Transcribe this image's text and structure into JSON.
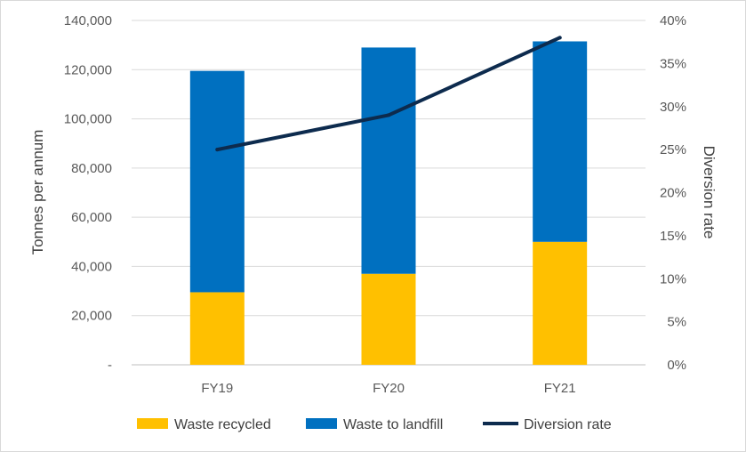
{
  "chart_data": {
    "type": "bar",
    "stacked": true,
    "categories": [
      "FY19",
      "FY20",
      "FY21"
    ],
    "series": [
      {
        "name": "Waste recycled",
        "kind": "bar",
        "axis": "left",
        "color": "#FFC000",
        "values": [
          29500,
          37000,
          50000
        ]
      },
      {
        "name": "Waste to landfill",
        "kind": "bar",
        "axis": "left",
        "color": "#0070C0",
        "values": [
          90000,
          92000,
          81500
        ]
      },
      {
        "name": "Diversion rate",
        "kind": "line",
        "axis": "right",
        "color": "#0D2B4E",
        "values": [
          0.25,
          0.29,
          0.38
        ]
      }
    ],
    "ylabel": "Tonnes per annum",
    "y2label": "Diversion rate",
    "ylim": [
      0,
      140000
    ],
    "y2lim": [
      0,
      0.4
    ],
    "yticks": [
      {
        "value": 0,
        "label": "-"
      },
      {
        "value": 20000,
        "label": "20,000"
      },
      {
        "value": 40000,
        "label": "40,000"
      },
      {
        "value": 60000,
        "label": "60,000"
      },
      {
        "value": 80000,
        "label": "80,000"
      },
      {
        "value": 100000,
        "label": "100,000"
      },
      {
        "value": 120000,
        "label": "120,000"
      },
      {
        "value": 140000,
        "label": "140,000"
      }
    ],
    "y2ticks": [
      {
        "value": 0,
        "label": "0%"
      },
      {
        "value": 0.05,
        "label": "5%"
      },
      {
        "value": 0.1,
        "label": "10%"
      },
      {
        "value": 0.15,
        "label": "15%"
      },
      {
        "value": 0.2,
        "label": "20%"
      },
      {
        "value": 0.25,
        "label": "25%"
      },
      {
        "value": 0.3,
        "label": "30%"
      },
      {
        "value": 0.35,
        "label": "35%"
      },
      {
        "value": 0.4,
        "label": "40%"
      }
    ],
    "grid": true,
    "legend_position": "bottom"
  }
}
